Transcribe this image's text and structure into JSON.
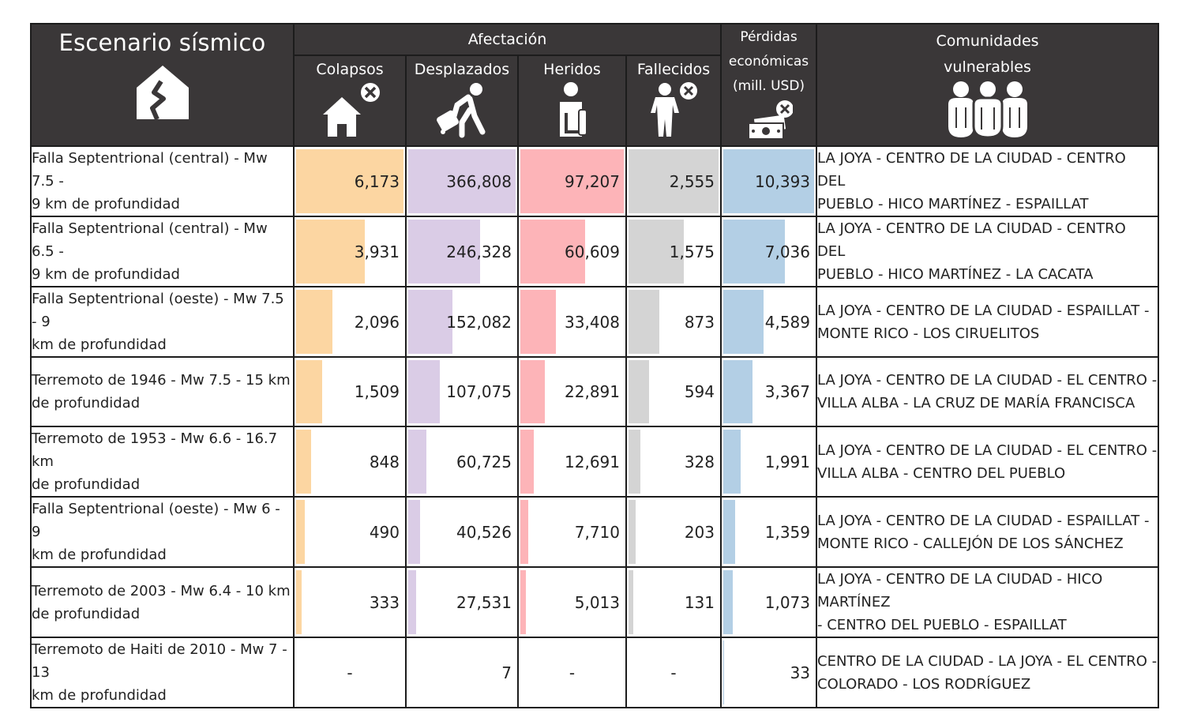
{
  "header": {
    "scenario_title": "Escenario sísmico",
    "group_title": "Afectación",
    "columns": {
      "colapsos": "Colapsos",
      "desplazados": "Desplazados",
      "heridos": "Heridos",
      "fallecidos": "Fallecidos",
      "perdidas_line1": "Pérdidas",
      "perdidas_line2": "económicas",
      "perdidas_line3": "(mill. USD)",
      "comunidades_line1": "Comunidades",
      "comunidades_line2": "vulnerables"
    }
  },
  "colors": {
    "header_bg": "#3a3738",
    "colapsos": "#fcd6a2",
    "desplazados": "#dacce6",
    "heridos": "#fdb4b8",
    "fallecidos": "#d4d4d4",
    "perdidas": "#b3cfe5"
  },
  "icons": {
    "scenario": "earthquake-house-icon",
    "colapsos": "collapsed-house-icon",
    "desplazados": "displaced-person-icon",
    "heridos": "injured-person-icon",
    "fallecidos": "deceased-person-icon",
    "perdidas": "money-loss-icon",
    "comunidades": "community-group-icon"
  },
  "rows": [
    {
      "scenario_line1": "Falla Septentrional (central) - Mw 7.5 -",
      "scenario_line2": "9 km de profundidad",
      "colapsos": "6,173",
      "colapsos_level": 1.0,
      "desplazados": "366,808",
      "desplazados_level": 1.0,
      "heridos": "97,207",
      "heridos_level": 1.0,
      "fallecidos": "2,555",
      "fallecidos_level": 1.0,
      "perdidas": "10,393",
      "perdidas_level": 1.0,
      "comunidades_line1": "LA JOYA - CENTRO DE LA CIUDAD - CENTRO DEL",
      "comunidades_line2": "PUEBLO - HICO MARTÍNEZ - ESPAILLAT"
    },
    {
      "scenario_line1": "Falla Septentrional (central) - Mw 6.5 -",
      "scenario_line2": "9 km de profundidad",
      "colapsos": "3,931",
      "colapsos_level": 0.637,
      "desplazados": "246,328",
      "desplazados_level": 0.672,
      "heridos": "60,609",
      "heridos_level": 0.624,
      "fallecidos": "1,575",
      "fallecidos_level": 0.616,
      "perdidas": "7,036",
      "perdidas_level": 0.677,
      "comunidades_line1": "LA JOYA - CENTRO DE LA CIUDAD - CENTRO DEL",
      "comunidades_line2": "PUEBLO - HICO MARTÍNEZ - LA CACATA"
    },
    {
      "scenario_line1": "Falla Septentrional (oeste) - Mw 7.5 - 9",
      "scenario_line2": "km de profundidad",
      "colapsos": "2,096",
      "colapsos_level": 0.34,
      "desplazados": "152,082",
      "desplazados_level": 0.415,
      "heridos": "33,408",
      "heridos_level": 0.344,
      "fallecidos": "873",
      "fallecidos_level": 0.342,
      "perdidas": "4,589",
      "perdidas_level": 0.442,
      "comunidades_line1": "LA JOYA - CENTRO DE LA CIUDAD - ESPAILLAT -",
      "comunidades_line2": "MONTE RICO - LOS CIRUELITOS"
    },
    {
      "scenario_line1": "Terremoto de 1946 - Mw 7.5 - 15 km",
      "scenario_line2": "de profundidad",
      "colapsos": "1,509",
      "colapsos_level": 0.244,
      "desplazados": "107,075",
      "desplazados_level": 0.292,
      "heridos": "22,891",
      "heridos_level": 0.235,
      "fallecidos": "594",
      "fallecidos_level": 0.232,
      "perdidas": "3,367",
      "perdidas_level": 0.324,
      "comunidades_line1": "LA JOYA - CENTRO DE LA CIUDAD - EL CENTRO -",
      "comunidades_line2": "VILLA ALBA - LA CRUZ DE MARÍA FRANCISCA"
    },
    {
      "scenario_line1": "Terremoto de 1953 - Mw 6.6 - 16.7 km",
      "scenario_line2": "de profundidad",
      "colapsos": "848",
      "colapsos_level": 0.137,
      "desplazados": "60,725",
      "desplazados_level": 0.166,
      "heridos": "12,691",
      "heridos_level": 0.131,
      "fallecidos": "328",
      "fallecidos_level": 0.128,
      "perdidas": "1,991",
      "perdidas_level": 0.192,
      "comunidades_line1": "LA JOYA - CENTRO DE LA CIUDAD - EL CENTRO -",
      "comunidades_line2": "VILLA ALBA - CENTRO DEL PUEBLO"
    },
    {
      "scenario_line1": "Falla Septentrional (oeste) - Mw 6 - 9",
      "scenario_line2": "km de profundidad",
      "colapsos": "490",
      "colapsos_level": 0.079,
      "desplazados": "40,526",
      "desplazados_level": 0.11,
      "heridos": "7,710",
      "heridos_level": 0.079,
      "fallecidos": "203",
      "fallecidos_level": 0.079,
      "perdidas": "1,359",
      "perdidas_level": 0.131,
      "comunidades_line1": "LA JOYA - CENTRO DE LA CIUDAD - ESPAILLAT -",
      "comunidades_line2": "MONTE RICO - CALLEJÓN DE LOS SÁNCHEZ"
    },
    {
      "scenario_line1": "Terremoto de 2003 - Mw 6.4 - 10 km",
      "scenario_line2": "de profundidad",
      "colapsos": "333",
      "colapsos_level": 0.054,
      "desplazados": "27,531",
      "desplazados_level": 0.075,
      "heridos": "5,013",
      "heridos_level": 0.052,
      "fallecidos": "131",
      "fallecidos_level": 0.051,
      "perdidas": "1,073",
      "perdidas_level": 0.103,
      "comunidades_line1": "LA JOYA - CENTRO DE LA CIUDAD - HICO MARTÍNEZ",
      "comunidades_line2": "- CENTRO DEL PUEBLO - ESPAILLAT"
    },
    {
      "scenario_line1": "Terremoto de Haiti de 2010 - Mw 7 - 13",
      "scenario_line2": "km de profundidad",
      "colapsos": "-",
      "colapsos_level": 0,
      "desplazados": "7",
      "desplazados_level": 0,
      "heridos": "-",
      "heridos_level": 0,
      "fallecidos": "-",
      "fallecidos_level": 0,
      "perdidas": "33",
      "perdidas_level": 0.003,
      "comunidades_line1": "CENTRO DE LA CIUDAD - LA JOYA - EL CENTRO -",
      "comunidades_line2": "COLORADO - LOS RODRÍGUEZ"
    }
  ]
}
